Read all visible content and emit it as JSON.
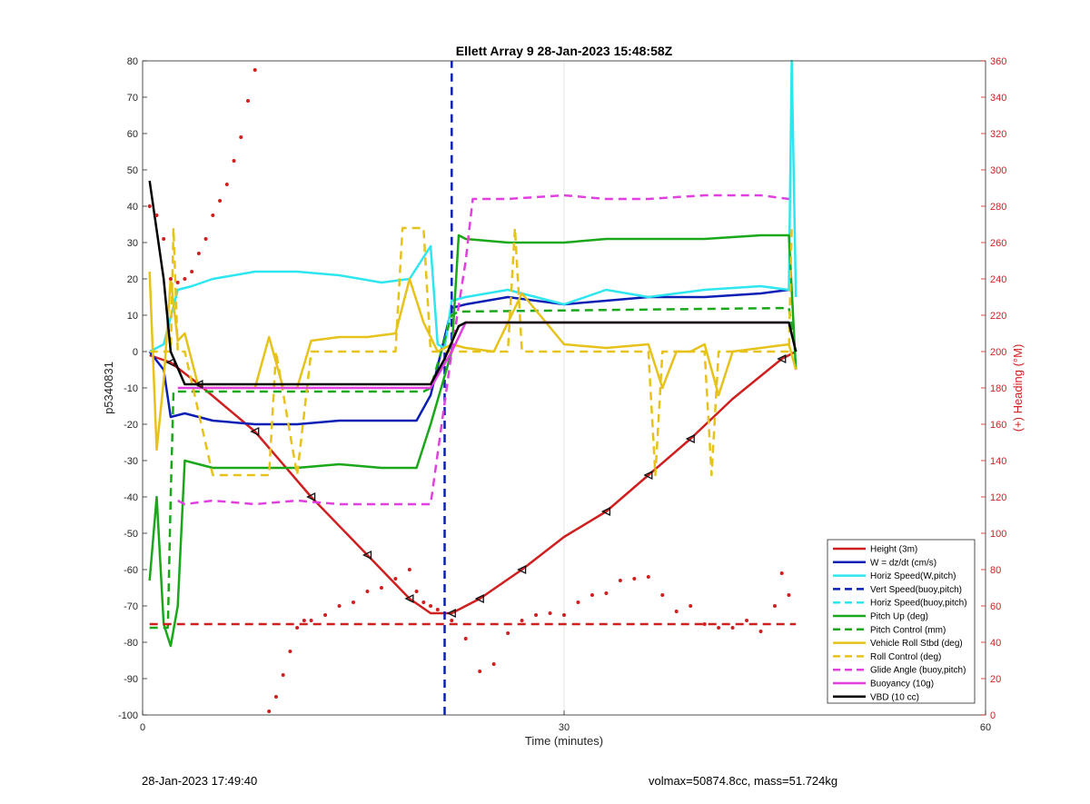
{
  "chart_data": {
    "type": "line",
    "title": "Ellett Array 9 28-Jan-2023 15:48:58Z",
    "xlabel": "Time (minutes)",
    "ylabel": "p5340831",
    "ylabel_right": "(+) Heading (°M)",
    "xlim": [
      0,
      60
    ],
    "ylim": [
      -100,
      80
    ],
    "ylim_right": [
      0,
      360
    ],
    "x_ticks": [
      0,
      30,
      60
    ],
    "y_ticks": [
      -100,
      -90,
      -80,
      -70,
      -60,
      -50,
      -40,
      -30,
      -20,
      -10,
      0,
      10,
      20,
      30,
      40,
      50,
      60,
      70,
      80
    ],
    "y_ticks_right": [
      0,
      20,
      40,
      60,
      80,
      100,
      120,
      140,
      160,
      180,
      200,
      220,
      240,
      260,
      280,
      300,
      320,
      340,
      360
    ],
    "grid": true,
    "legend_position": "bottom-right",
    "series": [
      {
        "name": "Height (3m)",
        "color": "#d01f1f",
        "style": "solid",
        "x": [
          0.5,
          2,
          4,
          8,
          12,
          16,
          19,
          20.5,
          22,
          24,
          27,
          30,
          33,
          36,
          39,
          42,
          45.5,
          46.5
        ],
        "y": [
          -1,
          -3,
          -9,
          -22,
          -40,
          -56,
          -68,
          -72,
          -72,
          -68,
          -60,
          -51,
          -44,
          -34,
          -24,
          -13,
          -2,
          0
        ]
      },
      {
        "name": "W = dz/dt (cm/s)",
        "color": "#0b1fb5",
        "style": "solid",
        "x": [
          0.5,
          1.5,
          2,
          3,
          5,
          8,
          11,
          14,
          17,
          19.5,
          20.5,
          22,
          23,
          26,
          30,
          33,
          36,
          40,
          44,
          46
        ],
        "y": [
          0,
          -5,
          -18,
          -17,
          -19,
          -20,
          -20,
          -19,
          -19,
          -19,
          -12,
          12,
          13,
          15,
          13,
          14,
          15,
          15,
          16,
          17
        ]
      },
      {
        "name": "Horiz Speed(W,pitch)",
        "color": "#2ee6f0",
        "style": "solid",
        "x": [
          0.5,
          1.5,
          2.5,
          3.5,
          5,
          8,
          11,
          14,
          17,
          19,
          20.5,
          21,
          21.5,
          22,
          23,
          26,
          30,
          33,
          36,
          40,
          44,
          46,
          46.2,
          46.5
        ],
        "y": [
          0,
          2,
          17,
          18,
          20,
          22,
          22,
          21,
          19,
          20,
          29,
          2,
          1,
          14,
          15,
          17,
          13,
          17,
          15,
          17,
          18,
          17,
          80,
          15
        ]
      },
      {
        "name": "Vert Speed(buoy,pitch)",
        "color": "#0b1fb5",
        "style": "dashed",
        "x": [
          21.5,
          21.5,
          22,
          22
        ],
        "y": [
          -100,
          0,
          0,
          80
        ]
      },
      {
        "name": "Horiz Speed(buoy,pitch)",
        "color": "#2ee6f0",
        "style": "dashed",
        "x": [],
        "y": []
      },
      {
        "name": "Pitch Up (deg)",
        "color": "#1aa81a",
        "style": "solid",
        "x": [
          0.5,
          1,
          1.5,
          2,
          2.5,
          3,
          5,
          8,
          11,
          14,
          17,
          19.5,
          20.5,
          22,
          22.5,
          23,
          26,
          30,
          33,
          36,
          40,
          44,
          46,
          46.5
        ],
        "y": [
          -63,
          -40,
          -75,
          -81,
          -70,
          -30,
          -32,
          -32,
          -32,
          -31,
          -32,
          -32,
          -20,
          0,
          32,
          31,
          30,
          30,
          31,
          31,
          31,
          32,
          32,
          -5
        ]
      },
      {
        "name": "Pitch Control (mm)",
        "color": "#1aa81a",
        "style": "dashed",
        "x": [
          0.5,
          1.8,
          2,
          2.2,
          20,
          20.5,
          22,
          22.5,
          46,
          46.5
        ],
        "y": [
          -76,
          -76,
          -40,
          -11,
          -11,
          -10,
          10,
          11,
          12,
          0
        ]
      },
      {
        "name": "Vehicle Roll Stbd (deg)",
        "color": "#e6c21a",
        "style": "solid",
        "x": [
          0.5,
          1,
          1.5,
          2,
          2.5,
          3,
          4,
          6,
          8,
          9,
          10,
          11,
          12,
          14,
          16,
          18,
          19,
          20,
          21,
          22,
          23,
          25,
          27,
          30,
          33,
          36,
          37,
          38,
          39,
          40,
          41,
          42,
          44,
          46,
          46.5
        ],
        "y": [
          22,
          -27,
          -8,
          20,
          3,
          5,
          -10,
          -10,
          -10,
          4,
          -10,
          -10,
          3,
          4,
          4,
          5,
          20,
          8,
          0,
          2,
          1,
          0,
          16,
          2,
          1,
          2,
          -10,
          0,
          0,
          2,
          -12,
          0,
          1,
          2,
          -5
        ]
      },
      {
        "name": "Roll Control (deg)",
        "color": "#e6c21a",
        "style": "dashed",
        "x": [
          0.5,
          1.5,
          2,
          2.2,
          2.5,
          3,
          5,
          7,
          9,
          9.5,
          11,
          12,
          14,
          16,
          18,
          18.5,
          20,
          20.5,
          22,
          24,
          26,
          26.5,
          27,
          30,
          33,
          36,
          36.5,
          37,
          38,
          40,
          40.5,
          41,
          44,
          46,
          46.2
        ],
        "y": [
          0,
          0,
          0,
          34,
          0,
          0,
          -34,
          -34,
          -34,
          0,
          -34,
          0,
          0,
          0,
          0,
          34,
          34,
          0,
          0,
          0,
          0,
          34,
          0,
          0,
          0,
          0,
          -34,
          0,
          0,
          0,
          -34,
          0,
          0,
          0,
          34
        ]
      },
      {
        "name": "Glide Angle (buoy,pitch)",
        "color": "#e23fe0",
        "style": "dashed",
        "x": [
          2.5,
          3,
          5,
          8,
          11,
          14,
          17,
          20.5,
          22,
          23,
          23.5,
          26,
          30,
          33,
          36,
          40,
          44,
          46
        ],
        "y": [
          -41,
          -42,
          -41,
          -42,
          -41,
          -42,
          -42,
          -42,
          0,
          25,
          42,
          42,
          43,
          42,
          42,
          43,
          43,
          42
        ]
      },
      {
        "name": "Buoyancy (10g)",
        "color": "#e23fe0",
        "style": "solid",
        "x": [
          2.5,
          20.5,
          22,
          23,
          46
        ],
        "y": [
          -10,
          -10,
          0,
          8,
          8
        ]
      },
      {
        "name": "VBD (10 cc)",
        "color": "#000000",
        "style": "solid",
        "x": [
          0.5,
          1.5,
          2,
          3,
          20.5,
          21.5,
          22.5,
          23,
          46,
          46.5
        ],
        "y": [
          47,
          20,
          0,
          -9,
          -9,
          -2,
          7,
          8,
          8,
          0
        ]
      },
      {
        "name": "",
        "color": "#d01f1f",
        "style": "dashed",
        "x": [
          0.5,
          46.5
        ],
        "y": [
          -75,
          -75
        ]
      }
    ],
    "heading_points": {
      "color": "#d01f1f",
      "axis": "right",
      "x": [
        0.5,
        1,
        1.5,
        2,
        2.5,
        3,
        3.5,
        4,
        4.5,
        5,
        5.5,
        6,
        6.5,
        7,
        7.5,
        8,
        8.5,
        9,
        9.5,
        10,
        10.5,
        11,
        11.5,
        12,
        13,
        14,
        15,
        16,
        17,
        18,
        19,
        19.5,
        20,
        20.5,
        21,
        22,
        23,
        24,
        25,
        26,
        27,
        28,
        29,
        30,
        31,
        32,
        33,
        34,
        35,
        36,
        37,
        38,
        39,
        40,
        41,
        42,
        43,
        44,
        45,
        45.5,
        46
      ],
      "y": [
        280,
        275,
        262,
        240,
        238,
        240,
        244,
        254,
        262,
        275,
        283,
        292,
        305,
        318,
        338,
        355,
        362,
        2,
        10,
        22,
        35,
        48,
        52,
        52,
        55,
        60,
        62,
        68,
        70,
        75,
        80,
        68,
        62,
        60,
        58,
        52,
        42,
        24,
        28,
        45,
        52,
        55,
        56,
        55,
        62,
        66,
        67,
        74,
        75,
        76,
        66,
        57,
        60,
        50,
        48,
        48,
        52,
        46,
        60,
        78,
        66
      ]
    }
  },
  "footer": {
    "left": "28-Jan-2023 17:49:40",
    "right": "volmax=50874.8cc, mass=51.724kg"
  }
}
